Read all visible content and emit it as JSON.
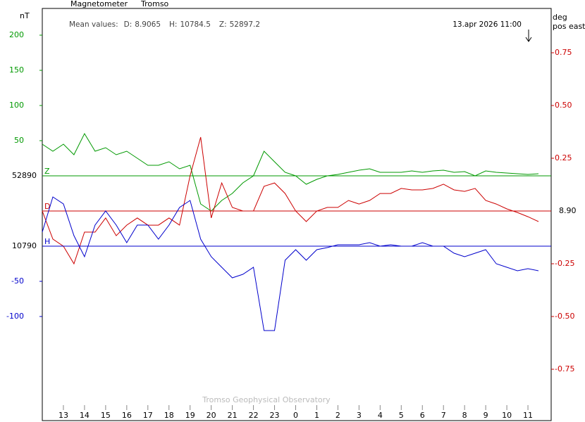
{
  "chart_data": {
    "type": "line",
    "title": "Magnetometer",
    "station": "Tromso",
    "mean_label": "Mean values:",
    "mean_values": [
      {
        "label": "D:",
        "value": 8.9065
      },
      {
        "label": "H:",
        "value": 10784.5
      },
      {
        "label": "Z:",
        "value": 52897.2
      }
    ],
    "timestamp": "13.apr 2026 11:00",
    "y_label": "nT",
    "y2_label": [
      "deg",
      "pos east"
    ],
    "footer": "Tromso Geophysical Observatory",
    "xlim": [
      0,
      24.1
    ],
    "xticks": [
      {
        "value": 1,
        "label": "13"
      },
      {
        "value": 2,
        "label": "14"
      },
      {
        "value": 3,
        "label": "15"
      },
      {
        "value": 4,
        "label": "16"
      },
      {
        "value": 5,
        "label": "17"
      },
      {
        "value": 6,
        "label": "18"
      },
      {
        "value": 7,
        "label": "19"
      },
      {
        "value": 8,
        "label": "20"
      },
      {
        "value": 9,
        "label": "21"
      },
      {
        "value": 10,
        "label": "22"
      },
      {
        "value": 11,
        "label": "23"
      },
      {
        "value": 12,
        "label": "0"
      },
      {
        "value": 13,
        "label": "1"
      },
      {
        "value": 14,
        "label": "2"
      },
      {
        "value": 15,
        "label": "3"
      },
      {
        "value": 16,
        "label": "4"
      },
      {
        "value": 17,
        "label": "5"
      },
      {
        "value": 18,
        "label": "6"
      },
      {
        "value": 19,
        "label": "7"
      },
      {
        "value": 20,
        "label": "8"
      },
      {
        "value": 21,
        "label": "9"
      },
      {
        "value": 22,
        "label": "10"
      },
      {
        "value": 23,
        "label": "11"
      }
    ],
    "x": [
      0,
      0.5,
      1,
      1.5,
      2,
      2.5,
      3,
      3.5,
      4,
      4.5,
      5,
      5.5,
      6,
      6.5,
      7,
      7.5,
      8,
      8.5,
      9,
      9.5,
      10,
      10.5,
      11,
      11.5,
      12,
      12.5,
      13,
      13.5,
      14,
      14.5,
      15,
      15.5,
      16,
      16.5,
      17,
      17.5,
      18,
      18.5,
      19,
      19.5,
      20,
      20.5,
      21,
      21.5,
      22,
      22.5,
      23,
      23.5
    ],
    "series": [
      {
        "name": "Z",
        "color": "#009900",
        "axis": "y",
        "baseline": 52890,
        "ylim": [
          -348,
          238
        ],
        "yticks": [
          50,
          100,
          150,
          200
        ],
        "values": [
          45,
          35,
          45,
          30,
          60,
          35,
          40,
          30,
          35,
          25,
          15,
          15,
          20,
          10,
          15,
          -40,
          -50,
          -35,
          -25,
          -10,
          0,
          35,
          20,
          5,
          0,
          -12,
          -5,
          0,
          2,
          5,
          8,
          10,
          5,
          5,
          5,
          7,
          5,
          7,
          8,
          5,
          6,
          0,
          7,
          5,
          4,
          3,
          2,
          3
        ]
      },
      {
        "name": "D",
        "color": "#cc0000",
        "axis": "y2",
        "baseline": {
          "value": 8.9,
          "label": "8.90"
        },
        "ylim": [
          -0.9933,
          0.96
        ],
        "yticks": [
          {
            "value": 0.75,
            "label": "0.75"
          },
          {
            "value": 0.5,
            "label": "0.50"
          },
          0.25,
          -0.25,
          {
            "value": -0.5,
            "label": "-0.50"
          },
          -0.75
        ],
        "values": [
          0,
          -0.133,
          -0.167,
          -0.25,
          -0.1,
          -0.1,
          -0.033,
          -0.117,
          -0.067,
          -0.033,
          -0.067,
          -0.067,
          -0.033,
          -0.067,
          0.167,
          0.35,
          -0.033,
          0.133,
          0.017,
          0,
          0,
          0.117,
          0.133,
          0.083,
          0,
          -0.05,
          0,
          0.017,
          0.017,
          0.05,
          0.033,
          0.05,
          0.083,
          0.083,
          0.107,
          0.1,
          0.1,
          0.107,
          0.127,
          0.1,
          0.093,
          0.107,
          0.05,
          0.033,
          0.01,
          -0.007,
          -0.027,
          -0.05
        ]
      },
      {
        "name": "H",
        "color": "#0000cc",
        "axis": "y",
        "baseline": 10790,
        "ylim": [
          -248,
          338
        ],
        "yticks": [
          -50,
          -100
        ],
        "values": [
          20,
          70,
          60,
          15,
          -15,
          30,
          50,
          30,
          5,
          30,
          30,
          10,
          30,
          55,
          65,
          10,
          -15,
          -30,
          -45,
          -40,
          -30,
          -120,
          -120,
          -20,
          -5,
          -20,
          -5,
          -2,
          2,
          2,
          2,
          5,
          0,
          2,
          0,
          0,
          5,
          0,
          0,
          -10,
          -15,
          -10,
          -5,
          -25,
          -30,
          -35,
          -32,
          -35
        ]
      }
    ]
  }
}
